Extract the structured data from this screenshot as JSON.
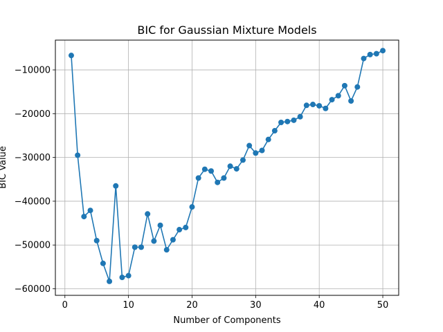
{
  "chart_data": {
    "type": "line",
    "title": "BIC for Gaussian Mixture Models",
    "xlabel": "Number of Components",
    "ylabel": "BIC Value",
    "xlim": [
      -1.5,
      52.5
    ],
    "ylim": [
      -61500,
      -3200
    ],
    "xticks": [
      0,
      10,
      20,
      30,
      40,
      50
    ],
    "xtick_labels": [
      "0",
      "10",
      "20",
      "30",
      "40",
      "50"
    ],
    "yticks": [
      -60000,
      -50000,
      -40000,
      -30000,
      -20000,
      -10000
    ],
    "ytick_labels": [
      "−60000",
      "−50000",
      "−40000",
      "−30000",
      "−20000",
      "−10000"
    ],
    "grid": true,
    "color": "#1f77b4",
    "marker": "circle",
    "series": [
      {
        "x": [
          1,
          2,
          3,
          4,
          5,
          6,
          7,
          8,
          9,
          10,
          11,
          12,
          13,
          14,
          15,
          16,
          17,
          18,
          19,
          20,
          21,
          22,
          23,
          24,
          25,
          26,
          27,
          28,
          29,
          30,
          31,
          32,
          33,
          34,
          35,
          36,
          37,
          38,
          39,
          40,
          41,
          42,
          43,
          44,
          45,
          46,
          47,
          48,
          49,
          50
        ],
        "values": [
          -6700,
          -29500,
          -43500,
          -42100,
          -49000,
          -54200,
          -58300,
          -36500,
          -57400,
          -57000,
          -50500,
          -50500,
          -42900,
          -49100,
          -45500,
          -51100,
          -48800,
          -46500,
          -46000,
          -41300,
          -34700,
          -32700,
          -33100,
          -35700,
          -34700,
          -32000,
          -32600,
          -30600,
          -27300,
          -29000,
          -28400,
          -25900,
          -23900,
          -22000,
          -21800,
          -21500,
          -20700,
          -18100,
          -17900,
          -18200,
          -18800,
          -16800,
          -15900,
          -13600,
          -17100,
          -13900,
          -7400,
          -6500,
          -6300,
          -5600
        ]
      }
    ]
  }
}
